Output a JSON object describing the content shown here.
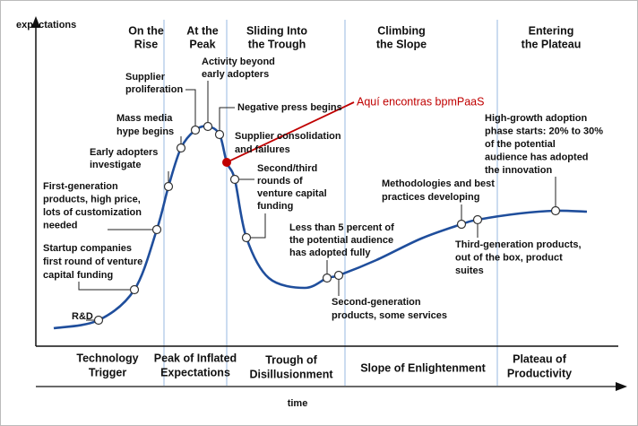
{
  "axes": {
    "y_label": "expectations",
    "x_label": "time"
  },
  "phase_headers": [
    [
      "On the",
      "Rise"
    ],
    [
      "At the",
      "Peak"
    ],
    [
      "Sliding Into",
      "the Trough"
    ],
    [
      "Climbing",
      "the Slope"
    ],
    [
      "Entering",
      "the Plateau"
    ]
  ],
  "phase_names": [
    [
      "Technology",
      "Trigger"
    ],
    [
      "Peak of Inflated",
      "Expectations"
    ],
    [
      "Trough of",
      "Disillusionment"
    ],
    [
      "Slope of Enlightenment"
    ],
    [
      "Plateau of",
      "Productivity"
    ]
  ],
  "annotations": [
    [
      "R&D"
    ],
    [
      "Startup companies",
      "first round of venture",
      "capital funding"
    ],
    [
      "First-generation",
      "products, high price,",
      "lots of customization",
      "needed"
    ],
    [
      "Early adopters",
      "investigate"
    ],
    [
      "Mass media",
      "hype begins"
    ],
    [
      "Supplier",
      "proliferation"
    ],
    [
      "Activity beyond",
      "early adopters"
    ],
    [
      "Negative press begins"
    ],
    [
      "Supplier consolidation",
      "and failures"
    ],
    [
      "Second/third",
      "rounds of",
      "venture capital",
      "funding"
    ],
    [
      "Less than 5 percent of",
      "the potential audience",
      "has adopted fully"
    ],
    [
      "Second-generation",
      "products, some services"
    ],
    [
      "Methodologies and best",
      "practices developing"
    ],
    [
      "Third-generation products,",
      "out of the box, product",
      "suites"
    ],
    [
      "High-growth adoption",
      "phase starts: 20% to 30%",
      "of the potential",
      "audience has adopted",
      "the innovation"
    ]
  ],
  "callout": "Aquí encontras bpmPaaS"
}
